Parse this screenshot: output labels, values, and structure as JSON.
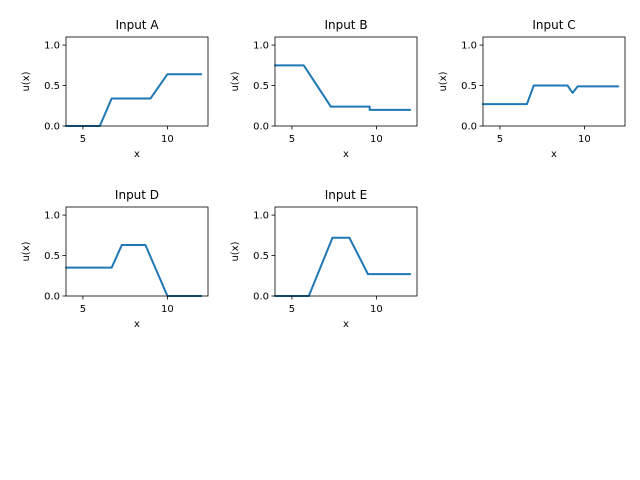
{
  "chart_data": [
    {
      "type": "line",
      "title": "Input A",
      "xlabel": "x",
      "ylabel": "u(x)",
      "xlim": [
        4,
        12.4
      ],
      "ylim": [
        0,
        1.1
      ],
      "xticks": [
        5,
        10
      ],
      "yticks": [
        0.0,
        0.5,
        1.0
      ],
      "xtick_labels": [
        "5",
        "10"
      ],
      "ytick_labels": [
        "0.0",
        "0.5",
        "1.0"
      ],
      "color": "#1f77b4",
      "x": [
        4,
        6,
        6.7,
        9,
        10,
        12
      ],
      "y": [
        0,
        0,
        0.34,
        0.34,
        0.64,
        0.64
      ]
    },
    {
      "type": "line",
      "title": "Input B",
      "xlabel": "x",
      "ylabel": "u(x)",
      "xlim": [
        4,
        12.4
      ],
      "ylim": [
        0,
        1.1
      ],
      "xticks": [
        5,
        10
      ],
      "yticks": [
        0.0,
        0.5,
        1.0
      ],
      "xtick_labels": [
        "5",
        "10"
      ],
      "ytick_labels": [
        "0.0",
        "0.5",
        "1.0"
      ],
      "color": "#1f77b4",
      "x": [
        4,
        5.7,
        7.3,
        9.6,
        9.6,
        12
      ],
      "y": [
        0.75,
        0.75,
        0.24,
        0.24,
        0.2,
        0.2
      ]
    },
    {
      "type": "line",
      "title": "Input C",
      "xlabel": "x",
      "ylabel": "u(x)",
      "xlim": [
        4,
        12.4
      ],
      "ylim": [
        0,
        1.1
      ],
      "xticks": [
        5,
        10
      ],
      "yticks": [
        0.0,
        0.5,
        1.0
      ],
      "xtick_labels": [
        "5",
        "10"
      ],
      "ytick_labels": [
        "0.0",
        "0.5",
        "1.0"
      ],
      "color": "#1f77b4",
      "x": [
        4,
        6.6,
        7,
        9,
        9.3,
        9.6,
        12
      ],
      "y": [
        0.27,
        0.27,
        0.5,
        0.5,
        0.41,
        0.49,
        0.49
      ]
    },
    {
      "type": "line",
      "title": "Input D",
      "xlabel": "x",
      "ylabel": "u(x)",
      "xlim": [
        4,
        12.4
      ],
      "ylim": [
        0,
        1.1
      ],
      "xticks": [
        5,
        10
      ],
      "yticks": [
        0.0,
        0.5,
        1.0
      ],
      "xtick_labels": [
        "5",
        "10"
      ],
      "ytick_labels": [
        "0.0",
        "0.5",
        "1.0"
      ],
      "color": "#1f77b4",
      "x": [
        4,
        6.7,
        7.3,
        8.7,
        10,
        12
      ],
      "y": [
        0.35,
        0.35,
        0.63,
        0.63,
        0,
        0
      ]
    },
    {
      "type": "line",
      "title": "Input E",
      "xlabel": "x",
      "ylabel": "u(x)",
      "xlim": [
        4,
        12.4
      ],
      "ylim": [
        0,
        1.1
      ],
      "xticks": [
        5,
        10
      ],
      "yticks": [
        0.0,
        0.5,
        1.0
      ],
      "xtick_labels": [
        "5",
        "10"
      ],
      "ytick_labels": [
        "0.0",
        "0.5",
        "1.0"
      ],
      "color": "#1f77b4",
      "x": [
        4,
        6,
        7.4,
        8.4,
        9.5,
        12
      ],
      "y": [
        0,
        0,
        0.72,
        0.72,
        0.27,
        0.27
      ]
    }
  ]
}
